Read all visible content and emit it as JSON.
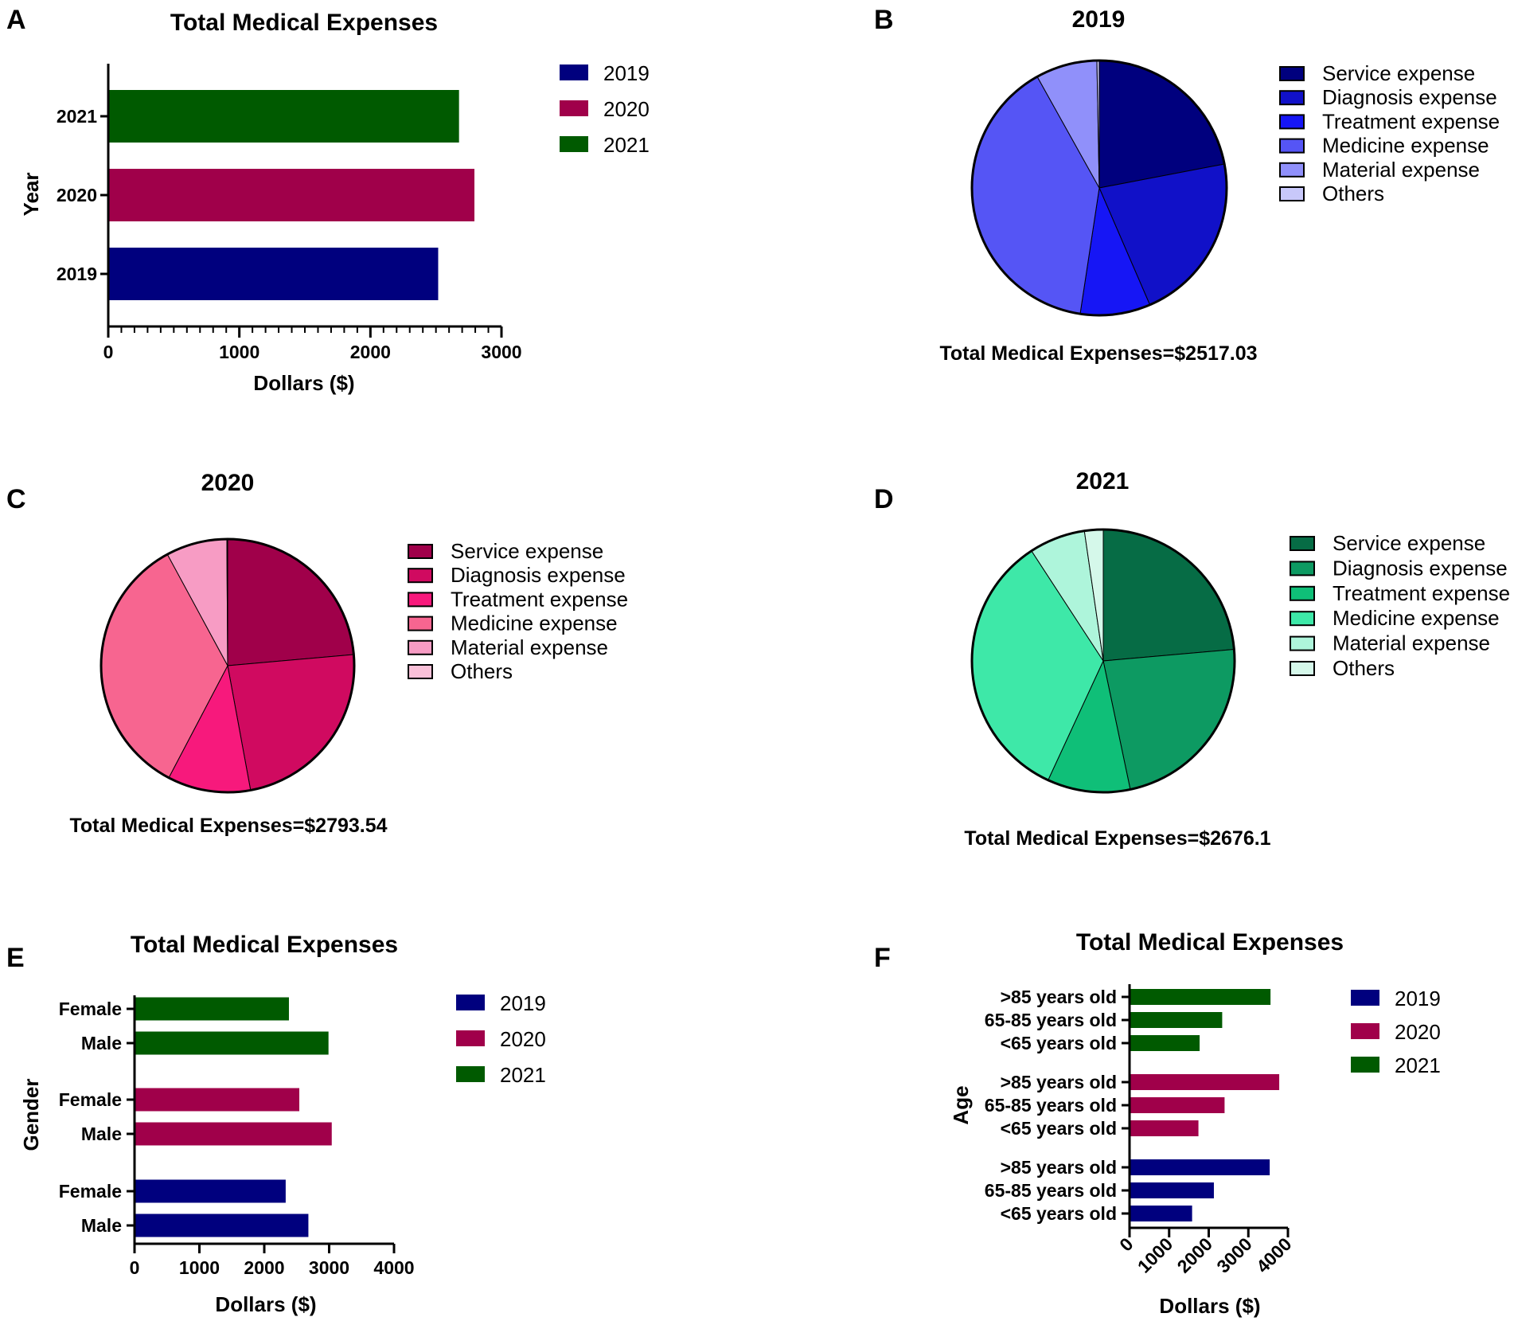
{
  "chart_data": [
    {
      "panel": "A",
      "type": "bar",
      "orientation": "horizontal",
      "title": "Total Medical Expenses",
      "xlabel": "Dollars ($)",
      "ylabel": "Year",
      "xlim": [
        0,
        3000
      ],
      "x_ticks": [
        "0",
        "1000",
        "2000",
        "3000"
      ],
      "categories": [
        "2021",
        "2020",
        "2019"
      ],
      "values": [
        2676.1,
        2793.54,
        2517.03
      ],
      "colors": [
        "#005a00",
        "#a0004a",
        "#00007e"
      ],
      "legend": [
        {
          "label": "2019",
          "color": "#00007e"
        },
        {
          "label": "2020",
          "color": "#a0004a"
        },
        {
          "label": "2021",
          "color": "#005a00"
        }
      ]
    },
    {
      "panel": "B",
      "type": "pie",
      "title": "2019",
      "total_label": "Total Medical Expenses=$2517.03",
      "labels": [
        "Service expense",
        "Diagnosis expense",
        "Treatment expense",
        "Medicine expense",
        "Material expense",
        "Others"
      ],
      "values": [
        22,
        21.5,
        8.9,
        39.5,
        7.8,
        0.3
      ],
      "colors": [
        "#00007e",
        "#1111c8",
        "#1616f5",
        "#5555f5",
        "#9090fa",
        "#c8c8fa"
      ]
    },
    {
      "panel": "C",
      "type": "pie",
      "title": "2020",
      "total_label": "Total Medical Expenses=$2793.54",
      "labels": [
        "Service expense",
        "Diagnosis expense",
        "Treatment expense",
        "Medicine expense",
        "Material expense",
        "Others"
      ],
      "values": [
        23.6,
        23.5,
        10.6,
        34.4,
        7.8,
        0.1
      ],
      "colors": [
        "#a0004a",
        "#d00a60",
        "#f7197c",
        "#f76590",
        "#f79cc4",
        "#f9c0d8"
      ]
    },
    {
      "panel": "D",
      "type": "pie",
      "title": "2021",
      "total_label": "Total Medical Expenses=$2676.1",
      "labels": [
        "Service expense",
        "Diagnosis expense",
        "Treatment expense",
        "Medicine expense",
        "Material expense",
        "Others"
      ],
      "values": [
        23.6,
        23.1,
        10.2,
        33.9,
        6.9,
        2.3
      ],
      "colors": [
        "#066c45",
        "#0d9a62",
        "#0fbf78",
        "#3ee8a8",
        "#aef5db",
        "#d5f8ea"
      ]
    },
    {
      "panel": "E",
      "type": "bar",
      "orientation": "horizontal",
      "title": "Total Medical Expenses",
      "xlabel": "Dollars ($)",
      "ylabel": "Gender",
      "xlim": [
        0,
        4000
      ],
      "x_ticks": [
        "0",
        "1000",
        "2000",
        "3000",
        "4000"
      ],
      "groups": [
        {
          "name": "2021",
          "color": "#005a00",
          "bars": [
            {
              "label": "Female",
              "value": 2380
            },
            {
              "label": "Male",
              "value": 2990
            }
          ]
        },
        {
          "name": "2020",
          "color": "#a0004a",
          "bars": [
            {
              "label": "Female",
              "value": 2540
            },
            {
              "label": "Male",
              "value": 3040
            }
          ]
        },
        {
          "name": "2019",
          "color": "#00007e",
          "bars": [
            {
              "label": "Female",
              "value": 2330
            },
            {
              "label": "Male",
              "value": 2680
            }
          ]
        }
      ],
      "legend": [
        {
          "label": "2019",
          "color": "#00007e"
        },
        {
          "label": "2020",
          "color": "#a0004a"
        },
        {
          "label": "2021",
          "color": "#005a00"
        }
      ]
    },
    {
      "panel": "F",
      "type": "bar",
      "orientation": "horizontal",
      "title": "Total Medical Expenses",
      "xlabel": "Dollars ($)",
      "ylabel": "Age",
      "xlim": [
        0,
        4000
      ],
      "x_ticks": [
        "0",
        "1000",
        "2000",
        "3000",
        "4000"
      ],
      "groups": [
        {
          "name": "2021",
          "color": "#005a00",
          "bars": [
            {
              "label": ">85 years old",
              "value": 3560
            },
            {
              "label": "65-85 years old",
              "value": 2340
            },
            {
              "label": "<65 years old",
              "value": 1770
            }
          ]
        },
        {
          "name": "2020",
          "color": "#a0004a",
          "bars": [
            {
              "label": ">85 years old",
              "value": 3780
            },
            {
              "label": "65-85 years old",
              "value": 2400
            },
            {
              "label": "<65 years old",
              "value": 1740
            }
          ]
        },
        {
          "name": "2019",
          "color": "#00007e",
          "bars": [
            {
              "label": ">85 years old",
              "value": 3540
            },
            {
              "label": "65-85 years old",
              "value": 2130
            },
            {
              "label": "<65 years old",
              "value": 1580
            }
          ]
        }
      ],
      "legend": [
        {
          "label": "2019",
          "color": "#00007e"
        },
        {
          "label": "2020",
          "color": "#a0004a"
        },
        {
          "label": "2021",
          "color": "#005a00"
        }
      ]
    }
  ]
}
